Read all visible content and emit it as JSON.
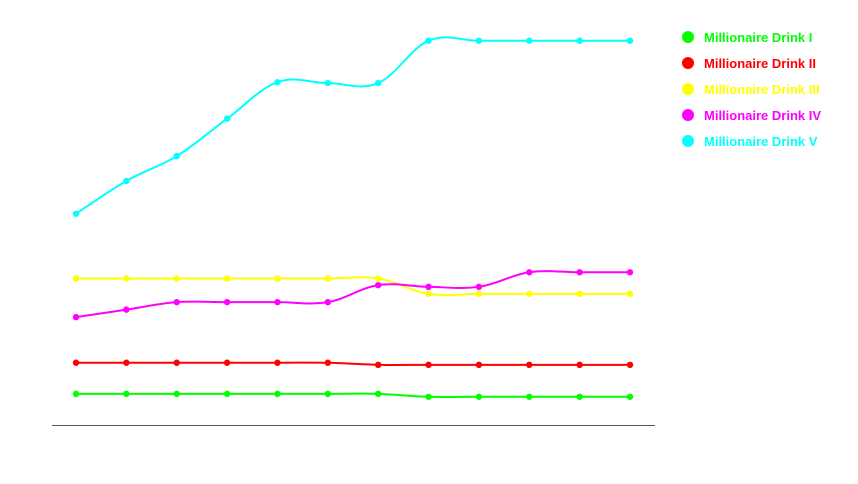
{
  "chart_data": {
    "type": "line",
    "title": "",
    "xlabel": "",
    "ylabel": "",
    "x_count": 12,
    "ylim": [
      0,
      100
    ],
    "grid": false,
    "legend_position": "top-right",
    "series": [
      {
        "name": "Millionaire Drink I",
        "color": "#00ff00",
        "values": [
          7.5,
          7.5,
          7.5,
          7.5,
          7.5,
          7.5,
          7.5,
          6.8,
          6.8,
          6.8,
          6.8,
          6.8
        ]
      },
      {
        "name": "Millionaire Drink II",
        "color": "#ff0000",
        "values": [
          15.0,
          15.0,
          15.0,
          15.0,
          15.0,
          15.0,
          14.5,
          14.5,
          14.5,
          14.5,
          14.5,
          14.5
        ]
      },
      {
        "name": "Millionaire Drink III",
        "color": "#ffff00",
        "values": [
          35.3,
          35.3,
          35.3,
          35.3,
          35.3,
          35.3,
          35.3,
          31.6,
          31.6,
          31.6,
          31.6,
          31.6
        ]
      },
      {
        "name": "Millionaire Drink IV",
        "color": "#ff00ff",
        "values": [
          26.0,
          27.8,
          29.6,
          29.6,
          29.6,
          29.6,
          33.7,
          33.3,
          33.3,
          36.8,
          36.8,
          36.8
        ]
      },
      {
        "name": "Millionaire Drink V",
        "color": "#00ffff",
        "values": [
          50.9,
          58.8,
          64.8,
          73.8,
          82.6,
          82.4,
          82.4,
          92.6,
          92.6,
          92.6,
          92.6,
          92.6
        ]
      }
    ]
  }
}
